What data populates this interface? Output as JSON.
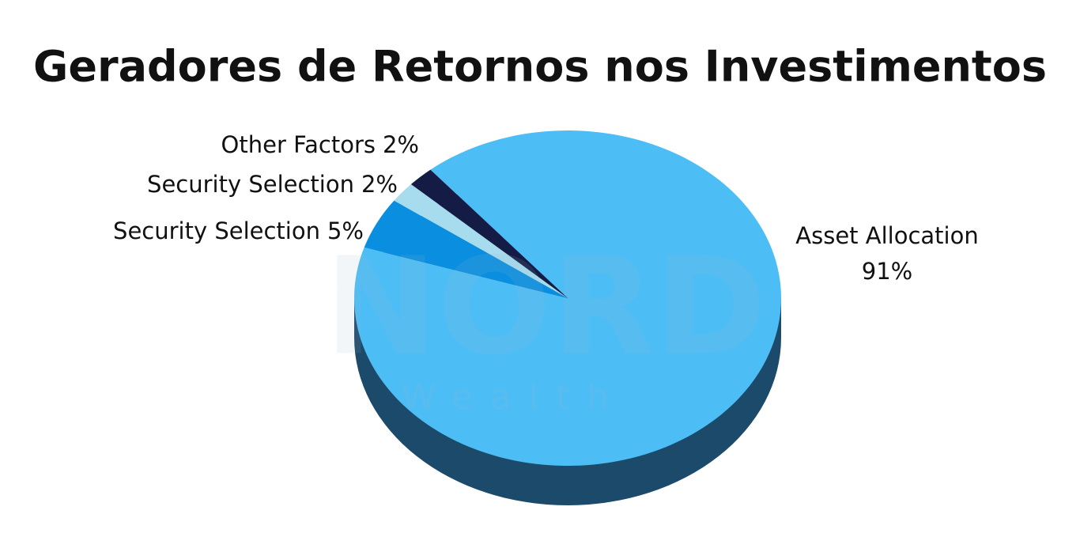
{
  "chart_data": {
    "type": "pie",
    "title": "Geradores de Retornos nos Investimentos",
    "categories": [
      "Asset Allocation",
      "Security Selection",
      "Security Selection",
      "Other Factors"
    ],
    "values": [
      91,
      5,
      2,
      2
    ],
    "value_labels": [
      "91%",
      "5%",
      "2%",
      "2%"
    ],
    "colors": [
      "#4dbdf5",
      "#0a8fe0",
      "#a6dcee",
      "#141c45"
    ],
    "depth_color": "#1b4a6a",
    "watermark": {
      "brand": "NORD",
      "sub": "Wealth"
    }
  }
}
